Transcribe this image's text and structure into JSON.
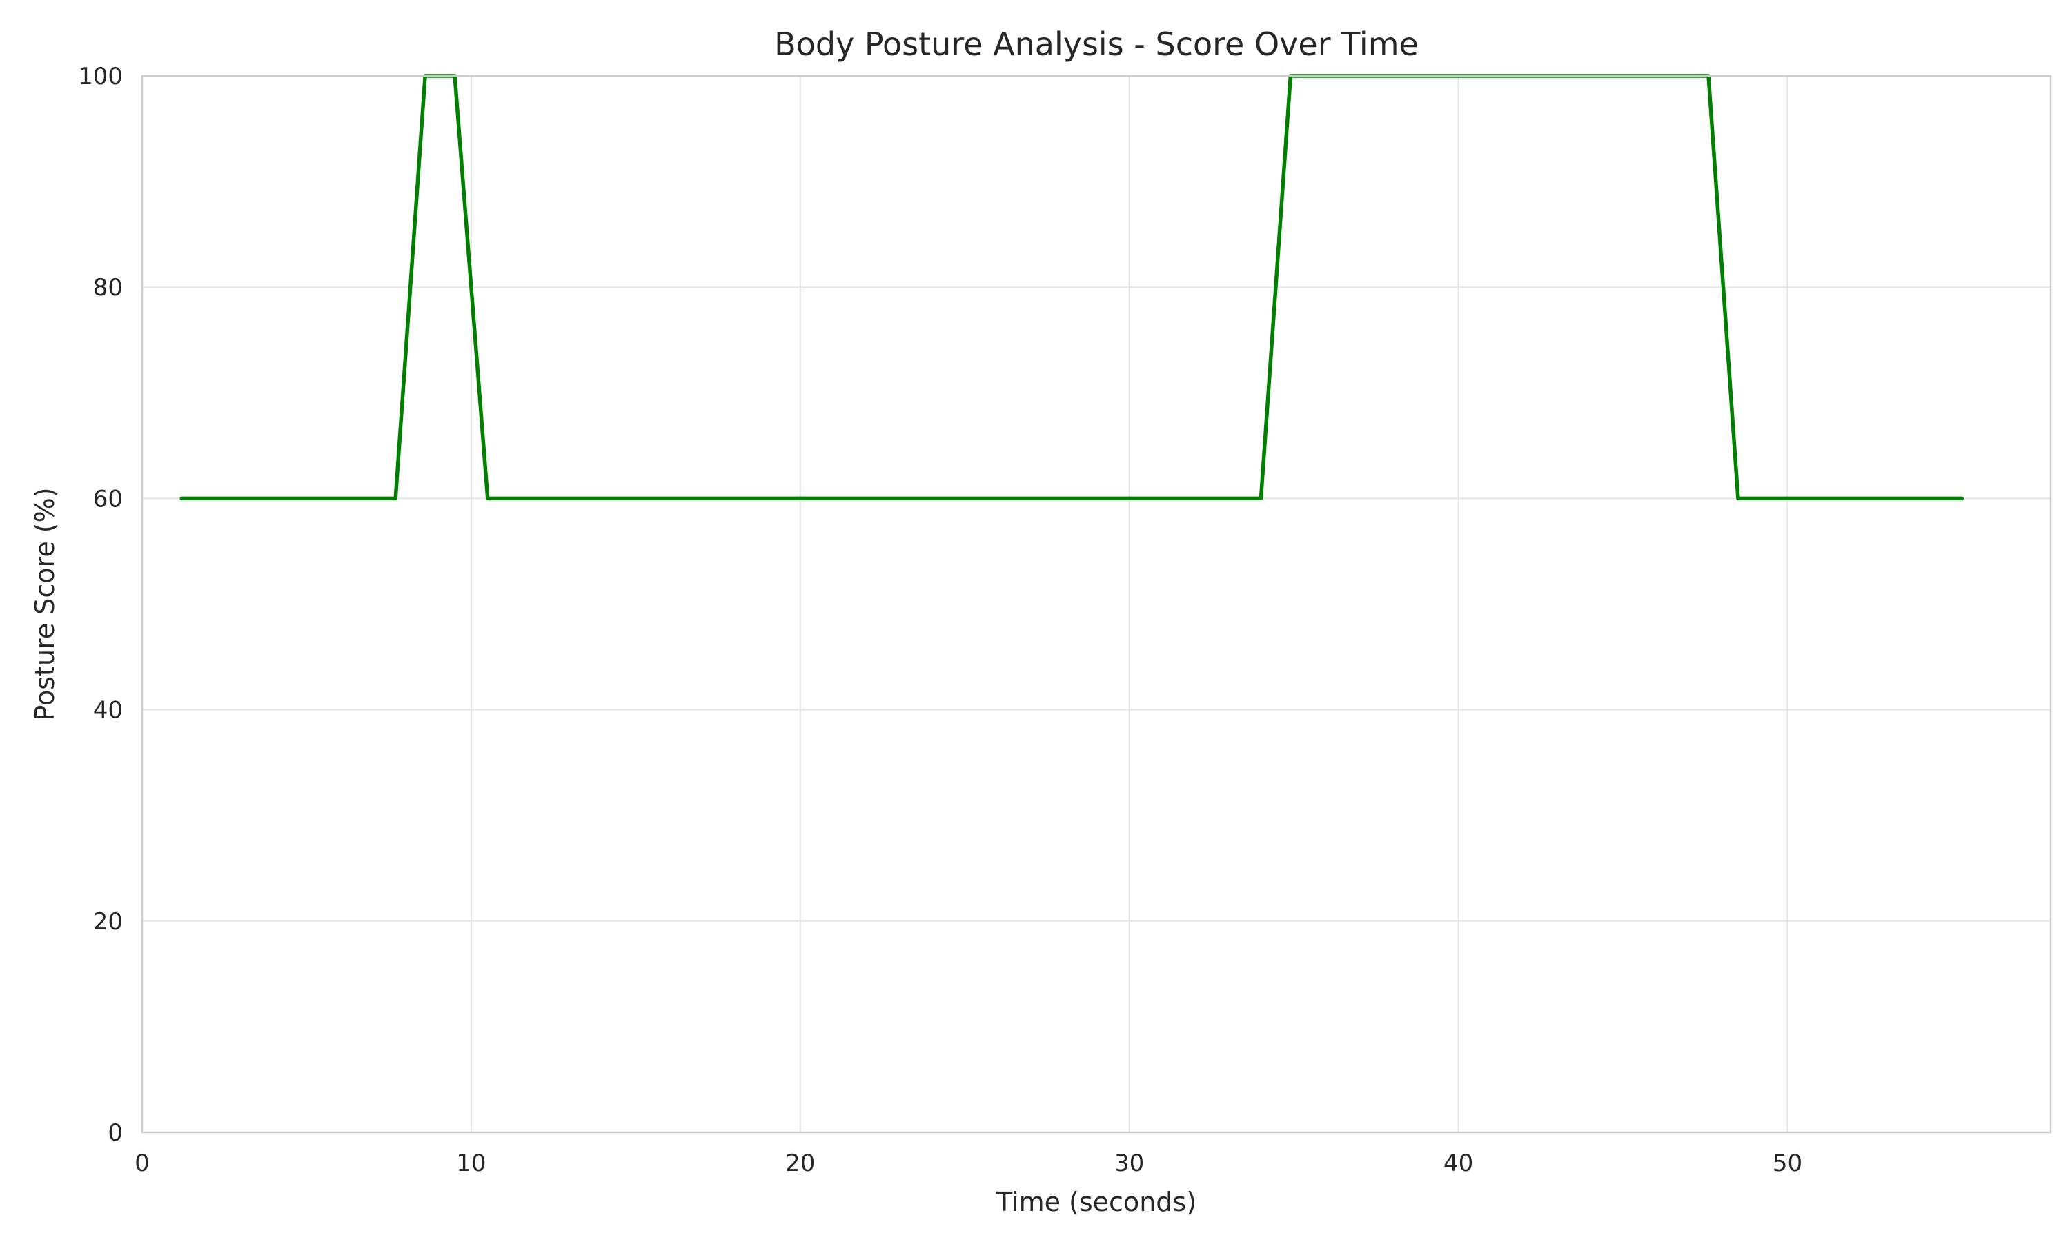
{
  "chart_data": {
    "type": "line",
    "title": "Body Posture Analysis - Score Over Time",
    "xlabel": "Time (seconds)",
    "ylabel": "Posture Score (%)",
    "xlim": [
      0,
      58
    ],
    "ylim": [
      0,
      100
    ],
    "x_ticks": [
      0,
      10,
      20,
      30,
      40,
      50
    ],
    "y_ticks": [
      0,
      20,
      40,
      60,
      80,
      100
    ],
    "x_tick_labels": [
      "0",
      "10",
      "20",
      "30",
      "40",
      "50"
    ],
    "y_tick_labels": [
      "0",
      "20",
      "40",
      "60",
      "80",
      "100"
    ],
    "grid": true,
    "legend": "none",
    "series": [
      {
        "color": "#008000",
        "x": [
          1.2,
          7.7,
          8.6,
          9.5,
          10.5,
          34.0,
          34.9,
          47.6,
          48.5,
          55.3
        ],
        "y": [
          60,
          60,
          100,
          100,
          60,
          60,
          100,
          100,
          60,
          60
        ]
      }
    ]
  },
  "colors": {
    "line": "#008000",
    "grid": "#e5e5e5",
    "spine": "#cccccc",
    "text": "#262626"
  }
}
